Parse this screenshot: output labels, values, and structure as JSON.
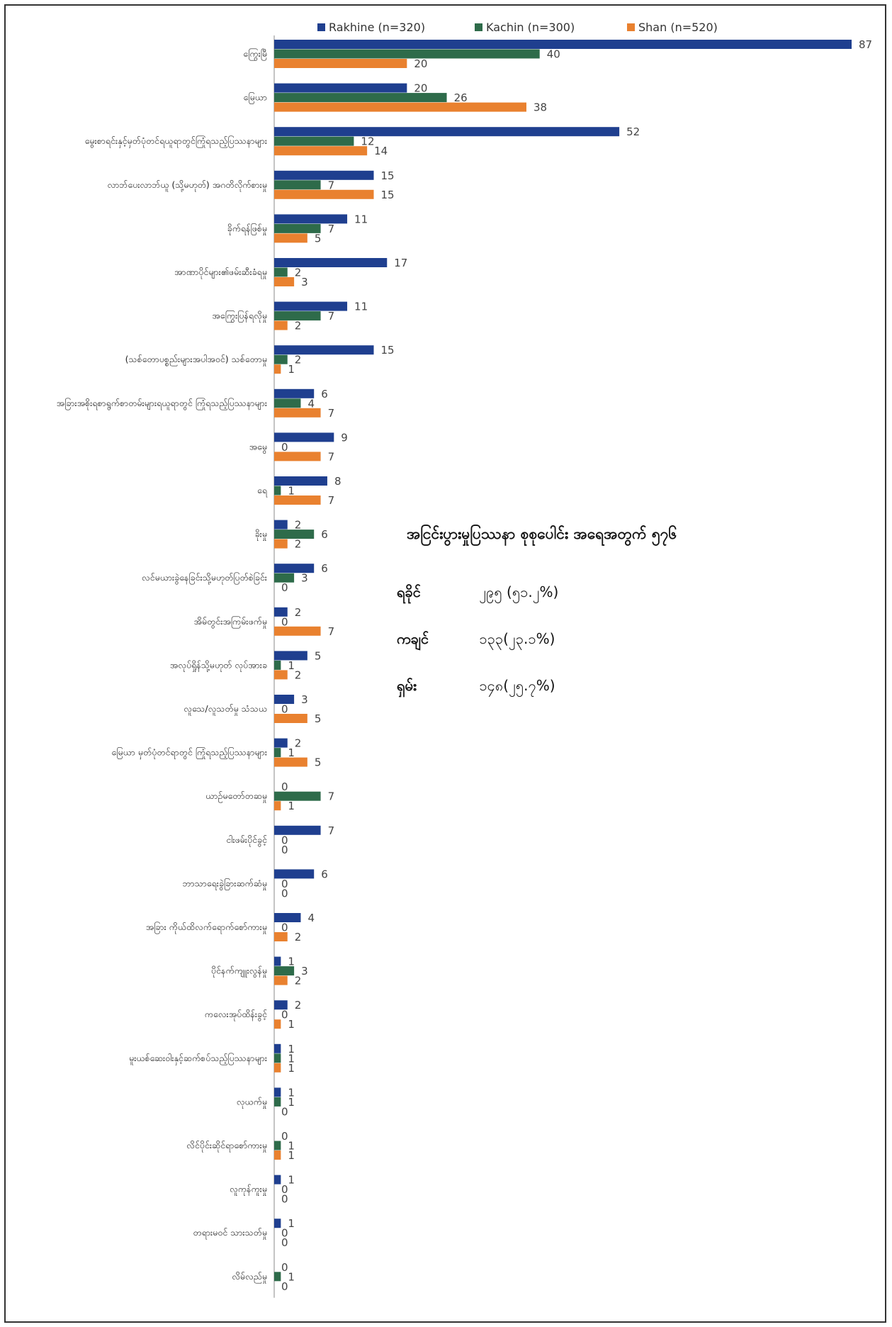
{
  "chart_data": {
    "type": "bar",
    "orientation": "horizontal",
    "legend_position": "top",
    "grid": false,
    "xlim": [
      0,
      87
    ],
    "categories": [
      "ကြွေးမြီ",
      "မြေယာ",
      "မွေးစာရင်းနှင့်မှတ်ပုံတင်ရယူရာတွင်ကြုံရသည့်ပြဿနာများ",
      "လာဘ်ပေးလာဘ်ယူ (သို့မဟုတ်) အဂတိလိုက်စားမှု",
      "ခိုက်ရန်ဖြစ်မှု",
      "အာဏာပိုင်များ၏ဖမ်းဆီးခံရမှု",
      "အကြွေးပြန်ရလိုမှု",
      "(သစ်တောပစ္စည်းများအပါအဝင်) သစ်တောမှု",
      "အခြားအစိုးရစာရွက်စာတမ်းများရယူရာတွင် ကြုံရသည့်ပြဿနာများ",
      "အမွေ",
      "ရေ",
      "ခိုးမှု",
      "လင်မယားခွဲနေခြင်းသို့မဟုတ်ပြတ်စဲခြင်း",
      "အိမ်တွင်းအကြမ်းဖက်မှု",
      "အလုပ်ရှိုန်သို့မဟုတ် လုပ်အားခ",
      "လူသေ/လူသတ်မှု သံသယ",
      "မြေယာ မှတ်ပုံတင်ရာတွင် ကြုံရသည့်ပြဿနာများ",
      "ယာဉ်မတော်တဆမှု",
      "ငါးဖမ်းပိုင်ခွင့်",
      "ဘာသာရေးခွဲခြားဆက်ဆံမှု",
      "အခြား ကိုယ်ထိလက်ရောက်စော်ကားမှု",
      "ပိုင်နက်ကျူးလွန်မှု",
      "ကလေးအုပ်ထိန်းခွင့်",
      "မူးယစ်ဆေးဝါးနှင့်ဆက်စပ်သည့်ပြဿနာများ",
      "လုယက်မှု",
      "လိင်ပိုင်းဆိုင်ရာစော်ကားမှု",
      "လူကုန်ကူးမှု",
      "တရားမဝင် သားသတ်မှု",
      "လိမ်လည်မှု"
    ],
    "series": [
      {
        "name": "Rakhine (n=320)",
        "color": "#1f3f8f",
        "values": [
          87,
          20,
          52,
          15,
          11,
          17,
          11,
          15,
          6,
          9,
          8,
          2,
          6,
          2,
          5,
          3,
          2,
          0,
          7,
          6,
          4,
          1,
          2,
          1,
          1,
          0,
          1,
          1,
          0
        ]
      },
      {
        "name": "Kachin (n=300)",
        "color": "#2e6b4a",
        "values": [
          40,
          26,
          12,
          7,
          7,
          2,
          7,
          2,
          4,
          0,
          1,
          6,
          3,
          0,
          1,
          0,
          1,
          7,
          0,
          0,
          0,
          3,
          0,
          1,
          1,
          1,
          0,
          0,
          1
        ]
      },
      {
        "name": "Shan (n=520)",
        "color": "#e9812f",
        "values": [
          20,
          38,
          14,
          15,
          5,
          3,
          2,
          1,
          7,
          7,
          7,
          2,
          0,
          7,
          2,
          5,
          5,
          1,
          0,
          0,
          2,
          2,
          1,
          1,
          0,
          1,
          0,
          0,
          0
        ]
      }
    ]
  },
  "summary": {
    "title": "အငြင်းပွားမှုပြဿနာ စုစုပေါင်း အရေအတွက် ၅၇၆",
    "rows": [
      {
        "name": "ရခိုင်",
        "value": "၂၉၅ (၅၁.၂%)"
      },
      {
        "name": "ကချင်",
        "value": "၁၃၃(၂၃.၁%)"
      },
      {
        "name": "ရှမ်း",
        "value": "၁၄၈(၂၅.၇%)"
      }
    ]
  }
}
